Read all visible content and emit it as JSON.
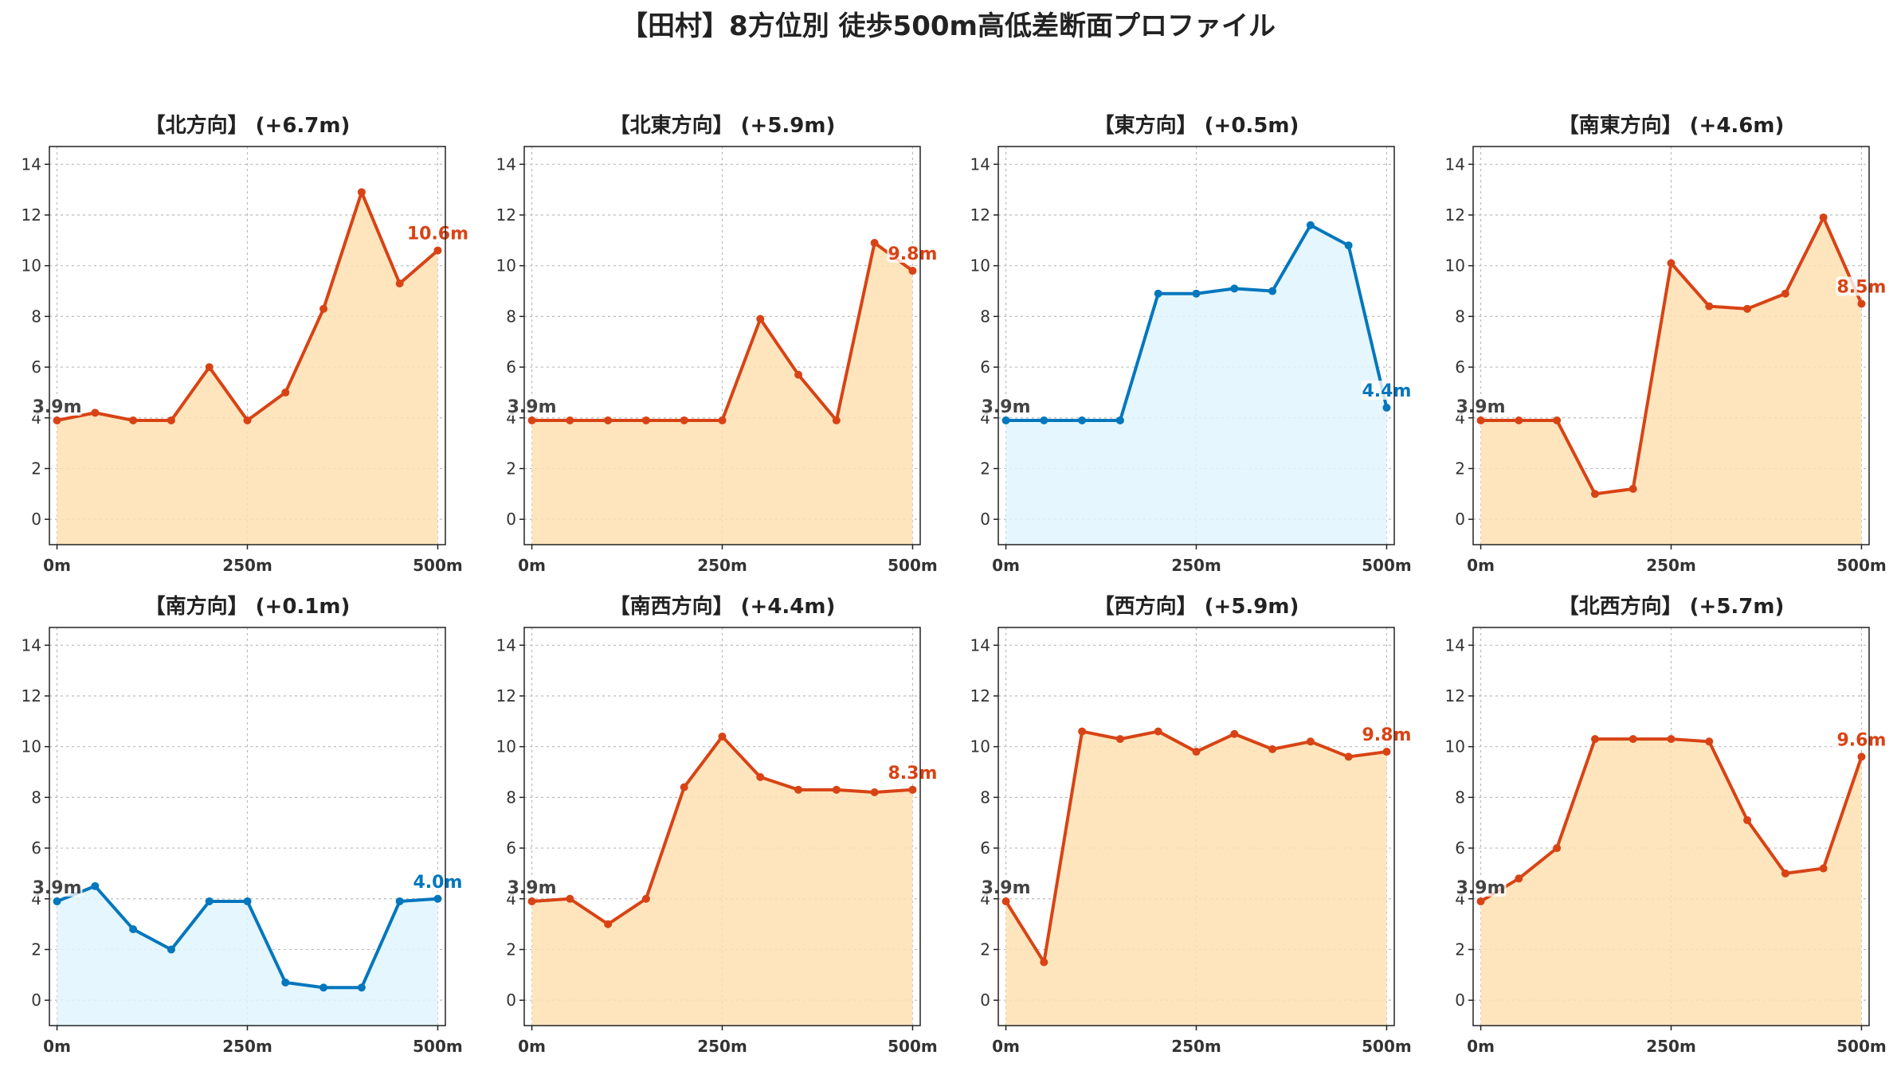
{
  "suptitle": "【田村】8方位別 徒歩500m高低差断面プロファイル",
  "colors": {
    "up_line": "#D84315",
    "up_fill": "#FFE0B2",
    "down_line": "#0277BD",
    "down_fill": "#E1F5FE",
    "start_label": "#444444"
  },
  "chart_data": [
    {
      "type": "area",
      "title": "【北方向】 (+6.7m)",
      "x": [
        0,
        50,
        100,
        150,
        200,
        250,
        300,
        350,
        400,
        450,
        500
      ],
      "values": [
        3.9,
        4.2,
        3.9,
        3.9,
        6.0,
        3.9,
        5.0,
        8.3,
        12.9,
        9.3,
        10.6
      ],
      "start_label": "3.9m",
      "end_label": "10.6m",
      "trend": "up",
      "xticks": [
        "0m",
        "250m",
        "500m"
      ],
      "yticks": [
        "0",
        "2",
        "4",
        "6",
        "8",
        "10",
        "12",
        "14"
      ],
      "ylim": [
        -1,
        14.7
      ],
      "xlim": [
        -10,
        510
      ],
      "grid": true
    },
    {
      "type": "area",
      "title": "【北東方向】 (+5.9m)",
      "x": [
        0,
        50,
        100,
        150,
        200,
        250,
        300,
        350,
        400,
        450,
        500
      ],
      "values": [
        3.9,
        3.9,
        3.9,
        3.9,
        3.9,
        3.9,
        7.9,
        5.7,
        3.9,
        10.9,
        9.8
      ],
      "start_label": "3.9m",
      "end_label": "9.8m",
      "trend": "up",
      "xticks": [
        "0m",
        "250m",
        "500m"
      ],
      "yticks": [
        "0",
        "2",
        "4",
        "6",
        "8",
        "10",
        "12",
        "14"
      ],
      "ylim": [
        -1,
        14.7
      ],
      "xlim": [
        -10,
        510
      ],
      "grid": true
    },
    {
      "type": "area",
      "title": "【東方向】 (+0.5m)",
      "x": [
        0,
        50,
        100,
        150,
        200,
        250,
        300,
        350,
        400,
        450,
        500
      ],
      "values": [
        3.9,
        3.9,
        3.9,
        3.9,
        8.9,
        8.9,
        9.1,
        9.0,
        11.6,
        10.8,
        4.4
      ],
      "start_label": "3.9m",
      "end_label": "4.4m",
      "trend": "down",
      "xticks": [
        "0m",
        "250m",
        "500m"
      ],
      "yticks": [
        "0",
        "2",
        "4",
        "6",
        "8",
        "10",
        "12",
        "14"
      ],
      "ylim": [
        -1,
        14.7
      ],
      "xlim": [
        -10,
        510
      ],
      "grid": true
    },
    {
      "type": "area",
      "title": "【南東方向】 (+4.6m)",
      "x": [
        0,
        50,
        100,
        150,
        200,
        250,
        300,
        350,
        400,
        450,
        500
      ],
      "values": [
        3.9,
        3.9,
        3.9,
        1.0,
        1.2,
        10.1,
        8.4,
        8.3,
        8.9,
        11.9,
        8.5
      ],
      "start_label": "3.9m",
      "end_label": "8.5m",
      "trend": "up",
      "xticks": [
        "0m",
        "250m",
        "500m"
      ],
      "yticks": [
        "0",
        "2",
        "4",
        "6",
        "8",
        "10",
        "12",
        "14"
      ],
      "ylim": [
        -1,
        14.7
      ],
      "xlim": [
        -10,
        510
      ],
      "grid": true
    },
    {
      "type": "area",
      "title": "【南方向】 (+0.1m)",
      "x": [
        0,
        50,
        100,
        150,
        200,
        250,
        300,
        350,
        400,
        450,
        500
      ],
      "values": [
        3.9,
        4.5,
        2.8,
        2.0,
        3.9,
        3.9,
        0.7,
        0.5,
        0.5,
        3.9,
        4.0
      ],
      "start_label": "3.9m",
      "end_label": "4.0m",
      "trend": "down",
      "xticks": [
        "0m",
        "250m",
        "500m"
      ],
      "yticks": [
        "0",
        "2",
        "4",
        "6",
        "8",
        "10",
        "12",
        "14"
      ],
      "ylim": [
        -1,
        14.7
      ],
      "xlim": [
        -10,
        510
      ],
      "grid": true
    },
    {
      "type": "area",
      "title": "【南西方向】 (+4.4m)",
      "x": [
        0,
        50,
        100,
        150,
        200,
        250,
        300,
        350,
        400,
        450,
        500
      ],
      "values": [
        3.9,
        4.0,
        3.0,
        4.0,
        8.4,
        10.4,
        8.8,
        8.3,
        8.3,
        8.2,
        8.3
      ],
      "start_label": "3.9m",
      "end_label": "8.3m",
      "trend": "up",
      "xticks": [
        "0m",
        "250m",
        "500m"
      ],
      "yticks": [
        "0",
        "2",
        "4",
        "6",
        "8",
        "10",
        "12",
        "14"
      ],
      "ylim": [
        -1,
        14.7
      ],
      "xlim": [
        -10,
        510
      ],
      "grid": true
    },
    {
      "type": "area",
      "title": "【西方向】 (+5.9m)",
      "x": [
        0,
        50,
        100,
        150,
        200,
        250,
        300,
        350,
        400,
        450,
        500
      ],
      "values": [
        3.9,
        1.5,
        10.6,
        10.3,
        10.6,
        9.8,
        10.5,
        9.9,
        10.2,
        9.6,
        9.8
      ],
      "start_label": "3.9m",
      "end_label": "9.8m",
      "trend": "up",
      "xticks": [
        "0m",
        "250m",
        "500m"
      ],
      "yticks": [
        "0",
        "2",
        "4",
        "6",
        "8",
        "10",
        "12",
        "14"
      ],
      "ylim": [
        -1,
        14.7
      ],
      "xlim": [
        -10,
        510
      ],
      "grid": true
    },
    {
      "type": "area",
      "title": "【北西方向】 (+5.7m)",
      "x": [
        0,
        50,
        100,
        150,
        200,
        250,
        300,
        350,
        400,
        450,
        500
      ],
      "values": [
        3.9,
        4.8,
        6.0,
        10.3,
        10.3,
        10.3,
        10.2,
        7.1,
        5.0,
        5.2,
        9.6
      ],
      "start_label": "3.9m",
      "end_label": "9.6m",
      "trend": "up",
      "xticks": [
        "0m",
        "250m",
        "500m"
      ],
      "yticks": [
        "0",
        "2",
        "4",
        "6",
        "8",
        "10",
        "12",
        "14"
      ],
      "ylim": [
        -1,
        14.7
      ],
      "xlim": [
        -10,
        510
      ],
      "grid": true
    }
  ]
}
